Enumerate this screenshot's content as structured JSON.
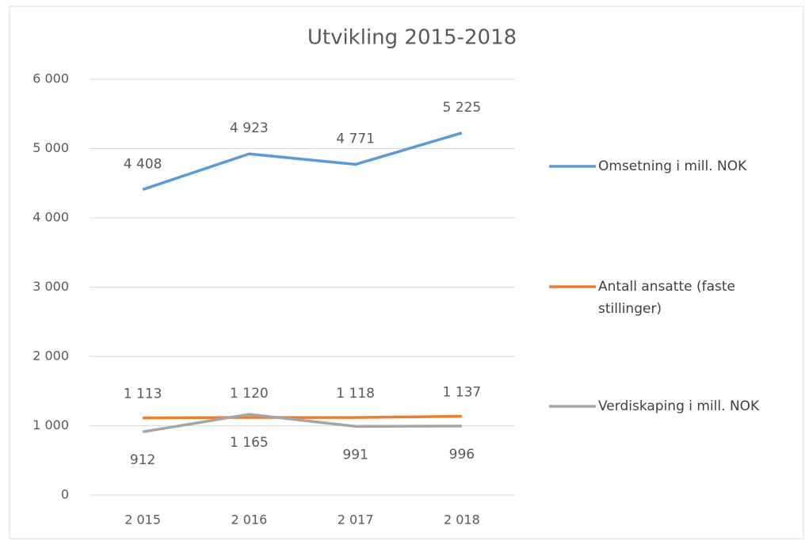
{
  "chart_data": {
    "type": "line",
    "title": "Utvikling 2015-2018",
    "categories": [
      "2 015",
      "2 016",
      "2 017",
      "2 018"
    ],
    "series": [
      {
        "name": "Omsetning i mill. NOK",
        "color": "#5b9bd5",
        "values": [
          4408,
          4923,
          4771,
          5225
        ],
        "value_labels": [
          "4 408",
          "4 923",
          "4 771",
          "5 225"
        ]
      },
      {
        "name": "Antall ansatte (faste stillinger)",
        "color": "#ed7d31",
        "values": [
          1113,
          1120,
          1118,
          1137
        ],
        "value_labels": [
          "1 113",
          "1 120",
          "1 118",
          "1 137"
        ]
      },
      {
        "name": "Verdiskaping i mill. NOK",
        "color": "#a5a5a5",
        "values": [
          912,
          1165,
          991,
          996
        ],
        "value_labels": [
          "912",
          "1 165",
          "991",
          "996"
        ]
      }
    ],
    "ylim": [
      0,
      6000
    ],
    "yticks": [
      0,
      {
        "value": 1000,
        "label": "1 000"
      },
      {
        "value": 2000,
        "label": "2 000"
      },
      {
        "value": 3000,
        "label": "3 000"
      },
      {
        "value": 4000,
        "label": "4 000"
      },
      {
        "value": 5000,
        "label": "5 000"
      },
      {
        "value": 6000,
        "label": "6 000"
      }
    ],
    "grid": true,
    "legend": "right"
  }
}
